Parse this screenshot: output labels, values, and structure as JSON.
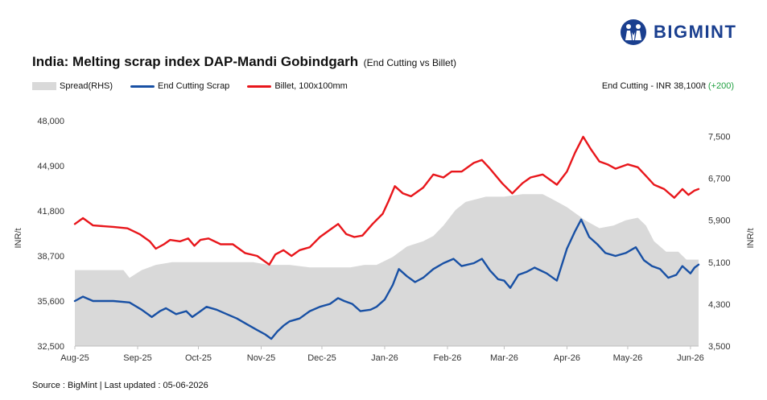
{
  "brand": {
    "name": "BIGMINT",
    "logo_icon": "bigmint-logo-icon",
    "color": "#1a3f8f"
  },
  "header": {
    "title": "India: Melting scrap index DAP-Mandi Gobindgarh",
    "subtitle": "(End Cutting vs Billet)"
  },
  "legend": {
    "spread": "Spread(RHS)",
    "end_cutting": "End Cutting Scrap",
    "billet": "Billet, 100x100mm"
  },
  "readout": {
    "label": "End Cutting - INR 38,100/t",
    "change": "(+200)"
  },
  "footer": {
    "source": "Source : BigMint | Last updated : 05-06-2026"
  },
  "colors": {
    "spread": "#d9d9d9",
    "end_cutting": "#1850a4",
    "billet": "#e8161b",
    "change": "#1fa040"
  },
  "chart_data": {
    "type": "line",
    "title": "India: Melting scrap index DAP-Mandi Gobindgarh",
    "subtitle": "(End Cutting vs Billet)",
    "ylabel": "INR/t",
    "y2label": "INR/t",
    "ylim": [
      32500,
      48000
    ],
    "y2lim": [
      3500,
      7800
    ],
    "yticks": [
      "32,500",
      "35,600",
      "38,700",
      "41,800",
      "44,900",
      "48,000"
    ],
    "y2ticks": [
      "3,500",
      "4,300",
      "5,100",
      "5,900",
      "6,700",
      "7,500"
    ],
    "x_range": [
      "2025-08-01",
      "2026-06-05"
    ],
    "xticks": [
      {
        "label": "Aug-25",
        "date": "2025-08-01"
      },
      {
        "label": "Sep-25",
        "date": "2025-09-01"
      },
      {
        "label": "Oct-25",
        "date": "2025-10-01"
      },
      {
        "label": "Nov-25",
        "date": "2025-11-01"
      },
      {
        "label": "Dec-25",
        "date": "2025-12-01"
      },
      {
        "label": "Jan-26",
        "date": "2026-01-01"
      },
      {
        "label": "Feb-26",
        "date": "2026-02-01"
      },
      {
        "label": "Mar-26",
        "date": "2026-03-01"
      },
      {
        "label": "Apr-26",
        "date": "2026-04-01"
      },
      {
        "label": "May-26",
        "date": "2026-05-01"
      },
      {
        "label": "Jun-26",
        "date": "2026-06-01"
      }
    ],
    "grid": false,
    "legend_position": "top-left",
    "series": [
      {
        "name": "Spread(RHS)",
        "type": "area",
        "axis": "right",
        "points": [
          [
            "2025-08-01",
            4950
          ],
          [
            "2025-08-15",
            4950
          ],
          [
            "2025-08-25",
            4950
          ],
          [
            "2025-08-28",
            4800
          ],
          [
            "2025-09-03",
            4950
          ],
          [
            "2025-09-10",
            5050
          ],
          [
            "2025-09-18",
            5100
          ],
          [
            "2025-10-01",
            5100
          ],
          [
            "2025-10-10",
            5100
          ],
          [
            "2025-10-20",
            5100
          ],
          [
            "2025-10-28",
            5100
          ],
          [
            "2025-11-05",
            5050
          ],
          [
            "2025-11-15",
            5050
          ],
          [
            "2025-11-25",
            5000
          ],
          [
            "2025-12-05",
            5000
          ],
          [
            "2025-12-15",
            5000
          ],
          [
            "2025-12-22",
            5050
          ],
          [
            "2025-12-28",
            5050
          ],
          [
            "2026-01-05",
            5200
          ],
          [
            "2026-01-12",
            5400
          ],
          [
            "2026-01-20",
            5500
          ],
          [
            "2026-01-25",
            5600
          ],
          [
            "2026-01-30",
            5800
          ],
          [
            "2026-02-05",
            6100
          ],
          [
            "2026-02-10",
            6250
          ],
          [
            "2026-02-20",
            6350
          ],
          [
            "2026-03-01",
            6350
          ],
          [
            "2026-03-10",
            6400
          ],
          [
            "2026-03-20",
            6400
          ],
          [
            "2026-03-25",
            6300
          ],
          [
            "2026-04-01",
            6150
          ],
          [
            "2026-04-10",
            5900
          ],
          [
            "2026-04-17",
            5750
          ],
          [
            "2026-04-24",
            5800
          ],
          [
            "2026-04-30",
            5900
          ],
          [
            "2026-05-06",
            5950
          ],
          [
            "2026-05-10",
            5800
          ],
          [
            "2026-05-14",
            5500
          ],
          [
            "2026-05-20",
            5300
          ],
          [
            "2026-05-26",
            5300
          ],
          [
            "2026-05-30",
            5150
          ],
          [
            "2026-06-05",
            5150
          ]
        ]
      },
      {
        "name": "End Cutting Scrap",
        "type": "line",
        "axis": "left",
        "points": [
          [
            "2025-08-01",
            35600
          ],
          [
            "2025-08-05",
            35900
          ],
          [
            "2025-08-10",
            35600
          ],
          [
            "2025-08-20",
            35600
          ],
          [
            "2025-08-28",
            35500
          ],
          [
            "2025-09-03",
            35000
          ],
          [
            "2025-09-08",
            34500
          ],
          [
            "2025-09-12",
            34900
          ],
          [
            "2025-09-15",
            35100
          ],
          [
            "2025-09-20",
            34700
          ],
          [
            "2025-09-25",
            34900
          ],
          [
            "2025-09-28",
            34500
          ],
          [
            "2025-10-01",
            34800
          ],
          [
            "2025-10-05",
            35200
          ],
          [
            "2025-10-10",
            35000
          ],
          [
            "2025-10-15",
            34700
          ],
          [
            "2025-10-20",
            34400
          ],
          [
            "2025-10-25",
            34000
          ],
          [
            "2025-10-30",
            33600
          ],
          [
            "2025-11-03",
            33300
          ],
          [
            "2025-11-06",
            33000
          ],
          [
            "2025-11-09",
            33500
          ],
          [
            "2025-11-12",
            33900
          ],
          [
            "2025-11-15",
            34200
          ],
          [
            "2025-11-20",
            34400
          ],
          [
            "2025-11-25",
            34900
          ],
          [
            "2025-11-30",
            35200
          ],
          [
            "2025-12-05",
            35400
          ],
          [
            "2025-12-09",
            35800
          ],
          [
            "2025-12-12",
            35600
          ],
          [
            "2025-12-16",
            35400
          ],
          [
            "2025-12-20",
            34900
          ],
          [
            "2025-12-25",
            35000
          ],
          [
            "2025-12-28",
            35200
          ],
          [
            "2026-01-01",
            35700
          ],
          [
            "2026-01-05",
            36700
          ],
          [
            "2026-01-08",
            37800
          ],
          [
            "2026-01-12",
            37300
          ],
          [
            "2026-01-16",
            36900
          ],
          [
            "2026-01-20",
            37200
          ],
          [
            "2026-01-25",
            37800
          ],
          [
            "2026-01-30",
            38200
          ],
          [
            "2026-02-04",
            38500
          ],
          [
            "2026-02-08",
            38000
          ],
          [
            "2026-02-14",
            38200
          ],
          [
            "2026-02-18",
            38500
          ],
          [
            "2026-02-22",
            37700
          ],
          [
            "2026-02-26",
            37100
          ],
          [
            "2026-03-01",
            37000
          ],
          [
            "2026-03-04",
            36500
          ],
          [
            "2026-03-08",
            37400
          ],
          [
            "2026-03-12",
            37600
          ],
          [
            "2026-03-16",
            37900
          ],
          [
            "2026-03-22",
            37500
          ],
          [
            "2026-03-27",
            37000
          ],
          [
            "2026-04-01",
            39200
          ],
          [
            "2026-04-05",
            40400
          ],
          [
            "2026-04-08",
            41200
          ],
          [
            "2026-04-12",
            40000
          ],
          [
            "2026-04-16",
            39500
          ],
          [
            "2026-04-20",
            38900
          ],
          [
            "2026-04-25",
            38700
          ],
          [
            "2026-04-30",
            38900
          ],
          [
            "2026-05-05",
            39300
          ],
          [
            "2026-05-09",
            38400
          ],
          [
            "2026-05-13",
            38000
          ],
          [
            "2026-05-17",
            37800
          ],
          [
            "2026-05-21",
            37200
          ],
          [
            "2026-05-25",
            37400
          ],
          [
            "2026-05-28",
            38000
          ],
          [
            "2026-06-01",
            37500
          ],
          [
            "2026-06-03",
            37900
          ],
          [
            "2026-06-05",
            38100
          ]
        ]
      },
      {
        "name": "Billet, 100x100mm",
        "type": "line",
        "axis": "left",
        "points": [
          [
            "2025-08-01",
            40900
          ],
          [
            "2025-08-05",
            41300
          ],
          [
            "2025-08-10",
            40800
          ],
          [
            "2025-08-20",
            40700
          ],
          [
            "2025-08-27",
            40600
          ],
          [
            "2025-09-02",
            40200
          ],
          [
            "2025-09-07",
            39700
          ],
          [
            "2025-09-10",
            39200
          ],
          [
            "2025-09-14",
            39500
          ],
          [
            "2025-09-17",
            39800
          ],
          [
            "2025-09-22",
            39700
          ],
          [
            "2025-09-26",
            39900
          ],
          [
            "2025-09-29",
            39400
          ],
          [
            "2025-10-02",
            39800
          ],
          [
            "2025-10-06",
            39900
          ],
          [
            "2025-10-12",
            39500
          ],
          [
            "2025-10-18",
            39500
          ],
          [
            "2025-10-24",
            38900
          ],
          [
            "2025-10-30",
            38700
          ],
          [
            "2025-11-05",
            38100
          ],
          [
            "2025-11-08",
            38800
          ],
          [
            "2025-11-12",
            39100
          ],
          [
            "2025-11-16",
            38700
          ],
          [
            "2025-11-20",
            39100
          ],
          [
            "2025-11-25",
            39300
          ],
          [
            "2025-11-30",
            40000
          ],
          [
            "2025-12-05",
            40500
          ],
          [
            "2025-12-09",
            40900
          ],
          [
            "2025-12-13",
            40200
          ],
          [
            "2025-12-17",
            40000
          ],
          [
            "2025-12-21",
            40100
          ],
          [
            "2025-12-26",
            40900
          ],
          [
            "2025-12-31",
            41600
          ],
          [
            "2026-01-03",
            42500
          ],
          [
            "2026-01-06",
            43500
          ],
          [
            "2026-01-10",
            43000
          ],
          [
            "2026-01-14",
            42800
          ],
          [
            "2026-01-20",
            43400
          ],
          [
            "2026-01-25",
            44300
          ],
          [
            "2026-01-30",
            44100
          ],
          [
            "2026-02-03",
            44500
          ],
          [
            "2026-02-08",
            44500
          ],
          [
            "2026-02-14",
            45100
          ],
          [
            "2026-02-18",
            45300
          ],
          [
            "2026-02-22",
            44700
          ],
          [
            "2026-02-28",
            43700
          ],
          [
            "2026-03-05",
            43000
          ],
          [
            "2026-03-10",
            43700
          ],
          [
            "2026-03-14",
            44100
          ],
          [
            "2026-03-20",
            44300
          ],
          [
            "2026-03-27",
            43600
          ],
          [
            "2026-04-01",
            44500
          ],
          [
            "2026-04-05",
            45800
          ],
          [
            "2026-04-09",
            46900
          ],
          [
            "2026-04-13",
            46000
          ],
          [
            "2026-04-17",
            45200
          ],
          [
            "2026-04-21",
            45000
          ],
          [
            "2026-04-25",
            44700
          ],
          [
            "2026-05-01",
            45000
          ],
          [
            "2026-05-06",
            44800
          ],
          [
            "2026-05-10",
            44200
          ],
          [
            "2026-05-14",
            43600
          ],
          [
            "2026-05-19",
            43300
          ],
          [
            "2026-05-24",
            42700
          ],
          [
            "2026-05-28",
            43300
          ],
          [
            "2026-05-31",
            42900
          ],
          [
            "2026-06-03",
            43200
          ],
          [
            "2026-06-05",
            43300
          ]
        ]
      }
    ]
  }
}
